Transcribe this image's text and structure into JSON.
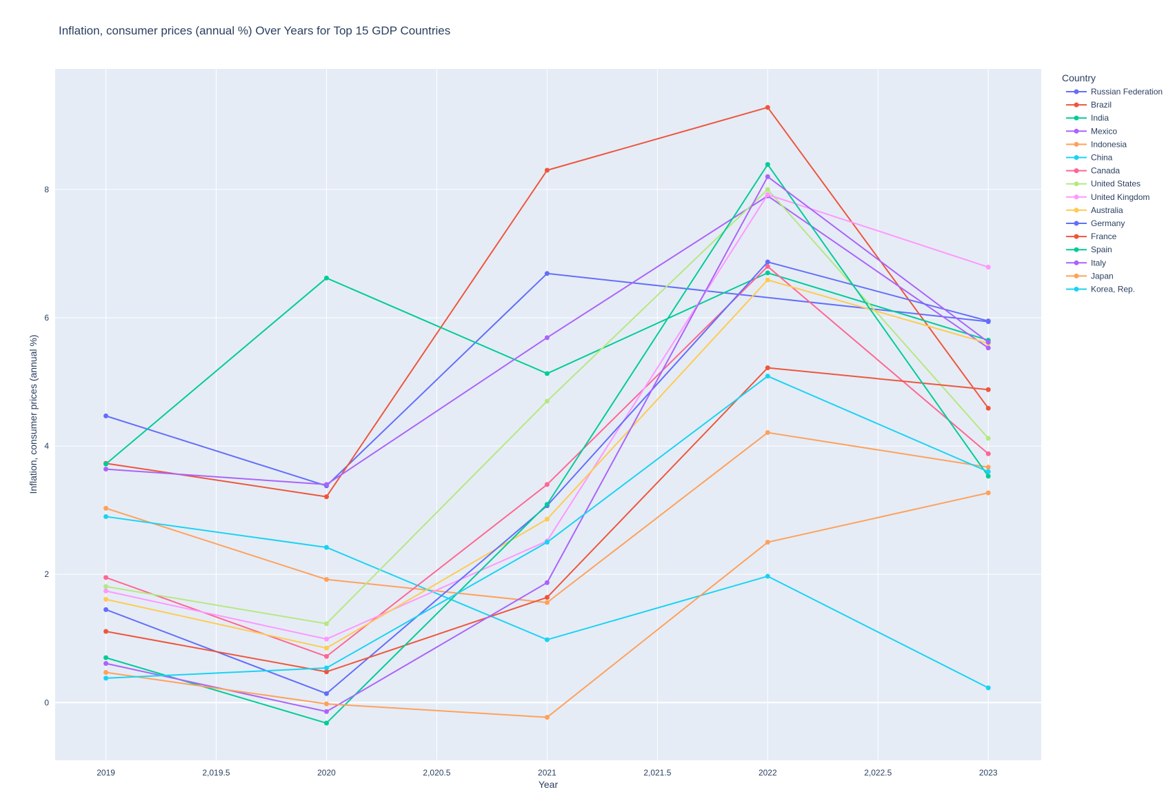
{
  "chart_data": {
    "type": "line",
    "title": "Inflation, consumer prices (annual %) Over Years for Top 15 GDP Countries",
    "xlabel": "Year",
    "ylabel": "Inflation, consumer prices (annual %)",
    "x": [
      2019,
      2020,
      2021,
      2022,
      2023
    ],
    "xlim": [
      2018.77,
      2023.24
    ],
    "ylim": [
      -0.9,
      9.88
    ],
    "x_ticks": [
      2019,
      2019.5,
      2020,
      2020.5,
      2021,
      2021.5,
      2022,
      2022.5,
      2023
    ],
    "x_tick_labels": [
      "2019",
      "2,019.5",
      "2020",
      "2,020.5",
      "2021",
      "2,021.5",
      "2022",
      "2,022.5",
      "2023"
    ],
    "y_ticks": [
      0,
      2,
      4,
      6,
      8
    ],
    "y_tick_labels": [
      "0",
      "2",
      "4",
      "6",
      "8"
    ],
    "grid": true,
    "legend_title": "Country",
    "legend_position": "right",
    "series": [
      {
        "name": "Russian Federation",
        "color": "#636efa",
        "values": [
          4.47,
          3.38,
          6.69,
          null,
          5.94
        ]
      },
      {
        "name": "Brazil",
        "color": "#EF553B",
        "values": [
          3.73,
          3.21,
          8.3,
          9.28,
          4.59
        ]
      },
      {
        "name": "India",
        "color": "#00cc96",
        "values": [
          3.72,
          6.62,
          5.13,
          6.7,
          5.65
        ]
      },
      {
        "name": "Mexico",
        "color": "#ab63fa",
        "values": [
          3.64,
          3.4,
          5.69,
          7.9,
          5.53
        ]
      },
      {
        "name": "Indonesia",
        "color": "#FFA15A",
        "values": [
          3.03,
          1.92,
          1.56,
          4.21,
          3.67
        ]
      },
      {
        "name": "China",
        "color": "#19d3f3",
        "values": [
          2.9,
          2.42,
          0.98,
          1.97,
          0.23
        ]
      },
      {
        "name": "Canada",
        "color": "#FF6692",
        "values": [
          1.95,
          0.72,
          3.4,
          6.8,
          3.88
        ]
      },
      {
        "name": "United States",
        "color": "#B6E880",
        "values": [
          1.81,
          1.23,
          4.7,
          8.0,
          4.12
        ]
      },
      {
        "name": "United Kingdom",
        "color": "#FF97FF",
        "values": [
          1.74,
          0.99,
          2.52,
          7.92,
          6.79
        ]
      },
      {
        "name": "Australia",
        "color": "#FECB52",
        "values": [
          1.61,
          0.85,
          2.86,
          6.59,
          5.6
        ]
      },
      {
        "name": "Germany",
        "color": "#636efa",
        "values": [
          1.45,
          0.14,
          3.07,
          6.87,
          5.95
        ]
      },
      {
        "name": "France",
        "color": "#EF553B",
        "values": [
          1.11,
          0.48,
          1.64,
          5.22,
          4.88
        ]
      },
      {
        "name": "Spain",
        "color": "#00cc96",
        "values": [
          0.7,
          -0.32,
          3.09,
          8.39,
          3.53
        ]
      },
      {
        "name": "Italy",
        "color": "#ab63fa",
        "values": [
          0.61,
          -0.14,
          1.87,
          8.2,
          5.62
        ]
      },
      {
        "name": "Japan",
        "color": "#FFA15A",
        "values": [
          0.47,
          -0.02,
          -0.23,
          2.5,
          3.27
        ]
      },
      {
        "name": "Korea, Rep.",
        "color": "#19d3f3",
        "values": [
          0.38,
          0.54,
          2.5,
          5.09,
          3.6
        ]
      }
    ]
  }
}
